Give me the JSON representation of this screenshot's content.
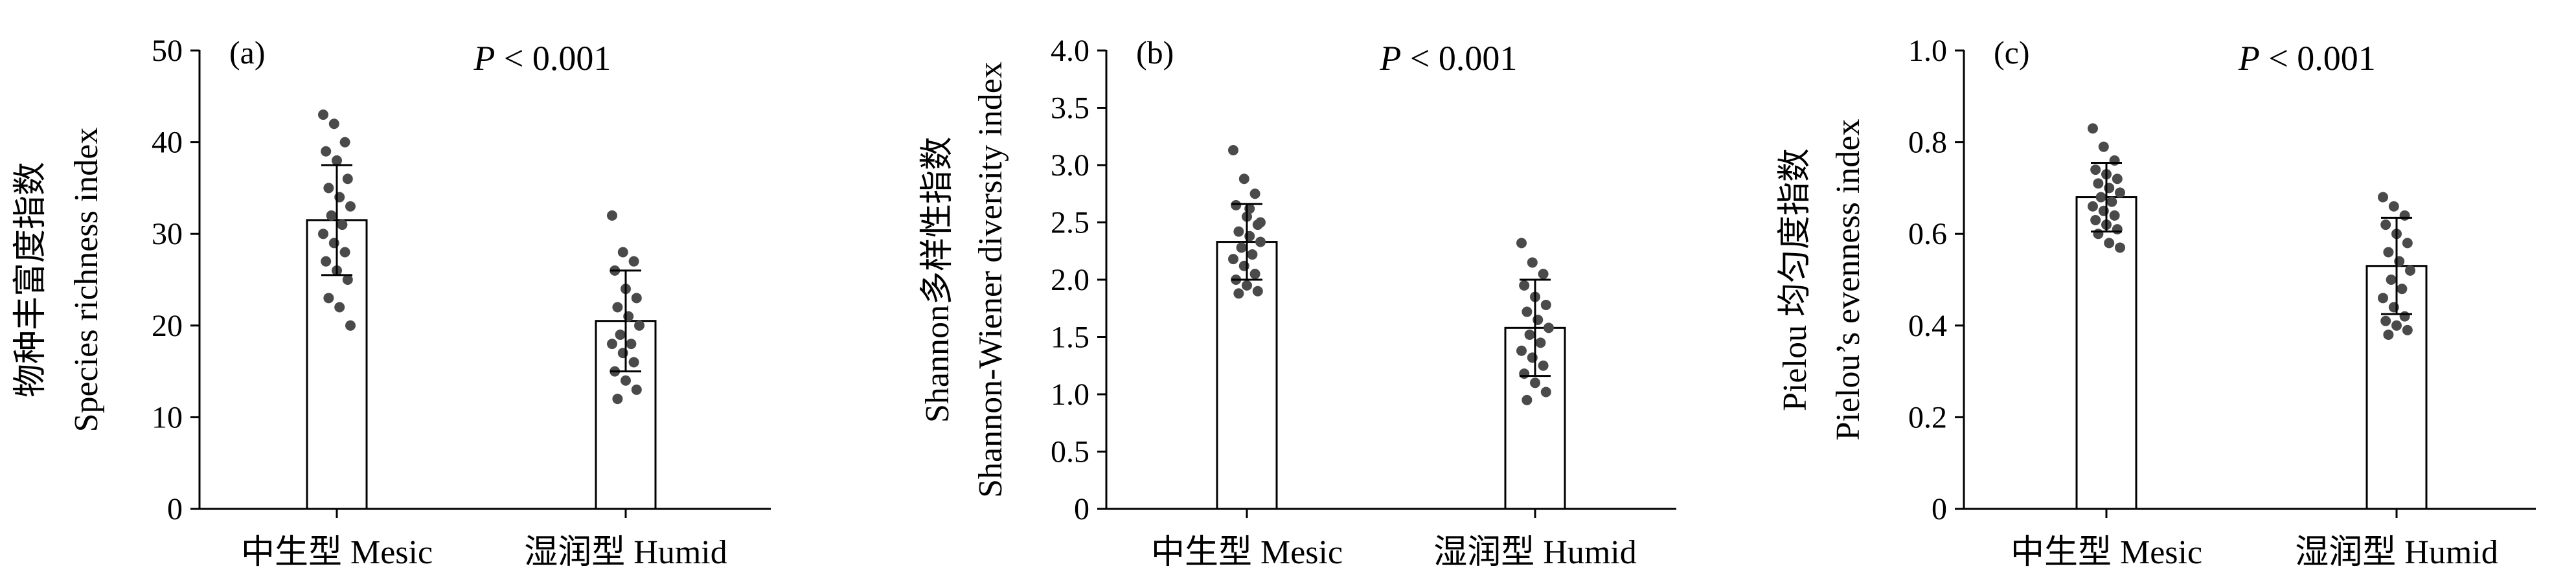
{
  "chart_data": [
    {
      "type": "bar",
      "panel_label": "(a)",
      "p_label": "P",
      "p_text": " < 0.001",
      "ylabel_cn": "物种丰富度指数",
      "ylabel_en": "Species richness index",
      "categories": [
        "中生型 Mesic",
        "湿润型 Humid"
      ],
      "ylim": [
        0,
        50
      ],
      "yticks": [
        0,
        10,
        20,
        30,
        40,
        50
      ],
      "tick_labels": [
        "0",
        "10",
        "20",
        "30",
        "40",
        "50"
      ],
      "values": [
        31.5,
        20.5
      ],
      "errors": [
        6.0,
        5.5
      ],
      "points": [
        [
          43,
          42,
          40,
          39,
          38,
          36,
          35,
          34,
          33,
          32,
          31,
          30,
          29,
          28,
          27,
          26,
          25,
          23,
          22,
          20
        ],
        [
          32,
          28,
          27,
          26,
          24,
          23,
          22,
          21,
          20,
          19,
          18,
          18,
          17,
          16,
          15,
          14,
          13,
          12
        ]
      ]
    },
    {
      "type": "bar",
      "panel_label": "(b)",
      "p_label": "P",
      "p_text": " < 0.001",
      "ylabel_cn": "Shannon多样性指数",
      "ylabel_en": "Shannon-Wiener diversity index",
      "categories": [
        "中生型 Mesic",
        "湿润型 Humid"
      ],
      "ylim": [
        0,
        4.0
      ],
      "yticks": [
        0,
        0.5,
        1.0,
        1.5,
        2.0,
        2.5,
        3.0,
        3.5,
        4.0
      ],
      "tick_labels": [
        "0",
        "0.5",
        "1.0",
        "1.5",
        "2.0",
        "2.5",
        "3.0",
        "3.5",
        "4.0"
      ],
      "values": [
        2.33,
        1.58
      ],
      "errors": [
        0.33,
        0.42
      ],
      "points": [
        [
          3.13,
          2.88,
          2.75,
          2.65,
          2.55,
          2.48,
          2.42,
          2.38,
          2.33,
          2.28,
          2.22,
          2.18,
          2.12,
          2.05,
          2.0,
          1.95,
          1.9,
          1.88,
          2.62,
          2.5
        ],
        [
          2.32,
          2.15,
          2.05,
          1.95,
          1.85,
          1.78,
          1.72,
          1.65,
          1.58,
          1.52,
          1.45,
          1.38,
          1.32,
          1.25,
          1.18,
          1.1,
          1.02,
          0.95
        ]
      ]
    },
    {
      "type": "bar",
      "panel_label": "(c)",
      "p_label": "P",
      "p_text": " < 0.001",
      "ylabel_cn": "Pielou 均匀度指数",
      "ylabel_en": "Pielou’s evenness index",
      "categories": [
        "中生型 Mesic",
        "湿润型 Humid"
      ],
      "ylim": [
        0,
        1.0
      ],
      "yticks": [
        0,
        0.2,
        0.4,
        0.6,
        0.8,
        1.0
      ],
      "tick_labels": [
        "0",
        "0.2",
        "0.4",
        "0.6",
        "0.8",
        "1.0"
      ],
      "values": [
        0.68,
        0.53
      ],
      "errors": [
        0.075,
        0.105
      ],
      "points": [
        [
          0.83,
          0.79,
          0.76,
          0.74,
          0.73,
          0.72,
          0.71,
          0.7,
          0.69,
          0.68,
          0.67,
          0.66,
          0.65,
          0.64,
          0.63,
          0.62,
          0.61,
          0.6,
          0.58,
          0.57
        ],
        [
          0.68,
          0.66,
          0.64,
          0.62,
          0.6,
          0.58,
          0.56,
          0.54,
          0.52,
          0.5,
          0.48,
          0.46,
          0.44,
          0.42,
          0.41,
          0.4,
          0.39,
          0.38
        ]
      ]
    }
  ]
}
